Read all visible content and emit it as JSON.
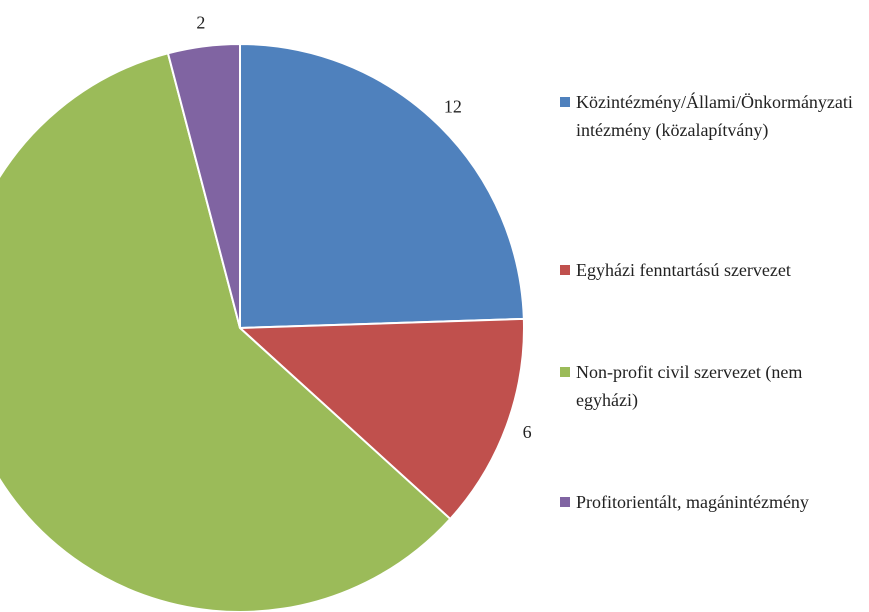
{
  "chart_data": {
    "type": "pie",
    "categories": [
      "Közintézmény/Állami/Önkormányzati intézmény (közalapítvány)",
      "Egyházi fenntartású szervezet",
      "Non-profit civil szervezet (nem egyházi)",
      "Profitorientált, magánintézmény"
    ],
    "values": [
      12,
      6,
      29,
      2
    ],
    "colors": [
      "#4f81bd",
      "#c0504d",
      "#9bbb59",
      "#8064a2"
    ]
  }
}
